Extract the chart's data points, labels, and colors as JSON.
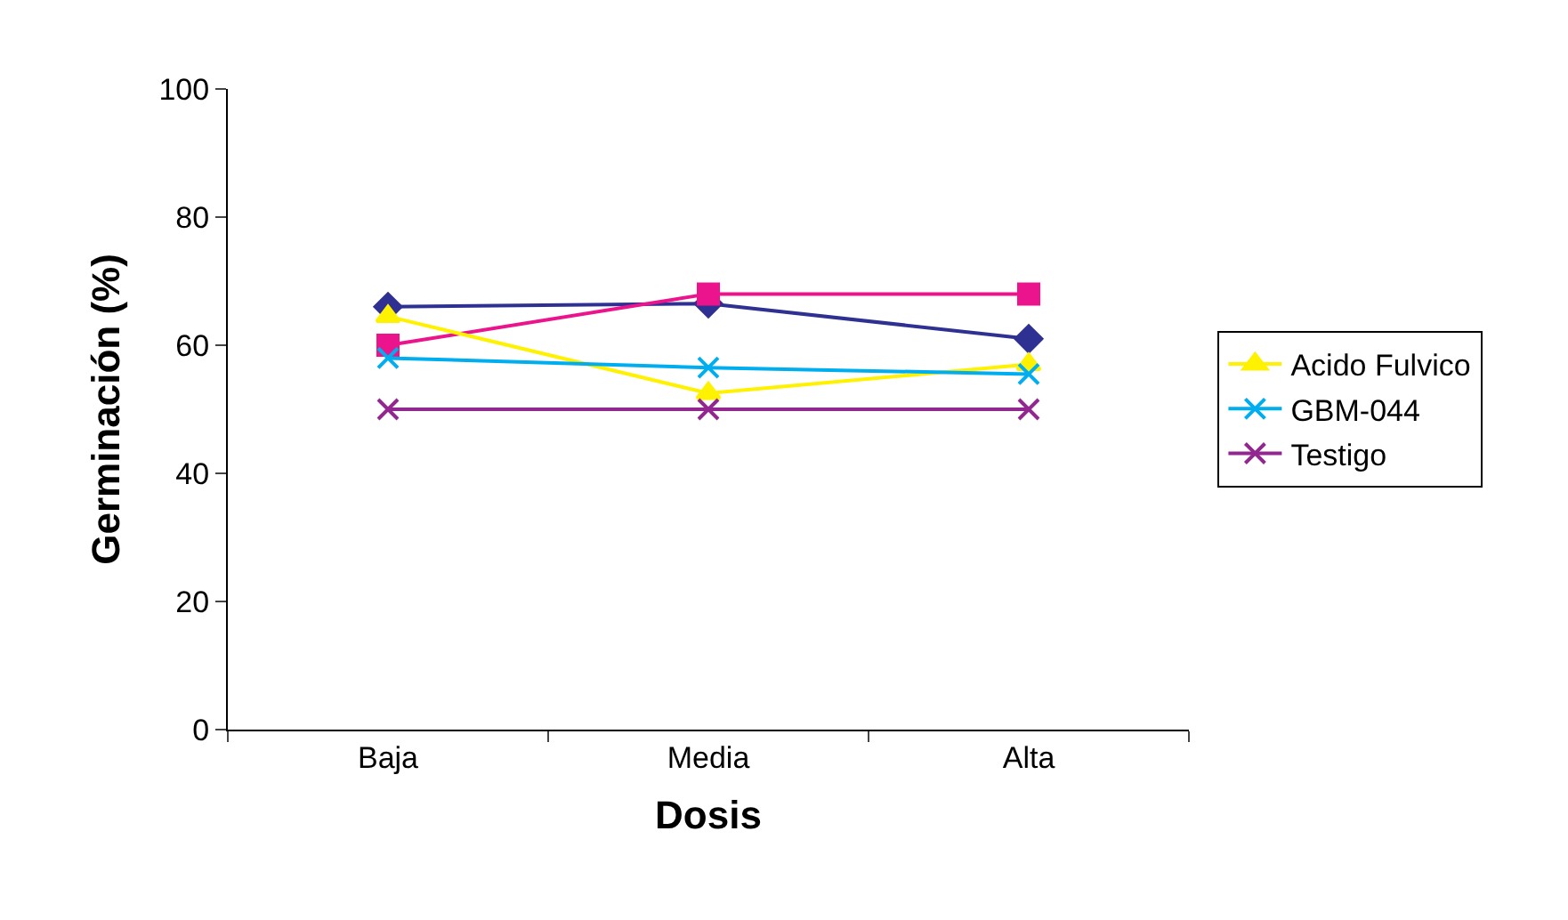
{
  "chart_data": {
    "type": "line",
    "xlabel": "Dosis",
    "ylabel": "Germinación (%)",
    "categories": [
      "Baja",
      "Media",
      "Alta"
    ],
    "series": [
      {
        "color": "#2e3192",
        "marker": "diamond",
        "values": [
          66,
          66.5,
          61
        ]
      },
      {
        "color": "#ec148c",
        "marker": "square",
        "values": [
          60,
          68,
          68
        ]
      },
      {
        "name": "Acido Fulvico",
        "color": "#fff200",
        "marker": "triangle",
        "values": [
          64.5,
          52.5,
          57
        ]
      },
      {
        "name": "GBM-044",
        "color": "#00aeef",
        "marker": "cross",
        "values": [
          58,
          56.5,
          55.5
        ]
      },
      {
        "name": "Testigo",
        "color": "#92278f",
        "marker": "cross",
        "values": [
          50,
          50,
          50
        ]
      }
    ],
    "ylim": [
      0,
      100
    ],
    "yticks": [
      0,
      20,
      40,
      60,
      80,
      100
    ],
    "grid": false,
    "legend": "right",
    "line_style": "solid"
  }
}
